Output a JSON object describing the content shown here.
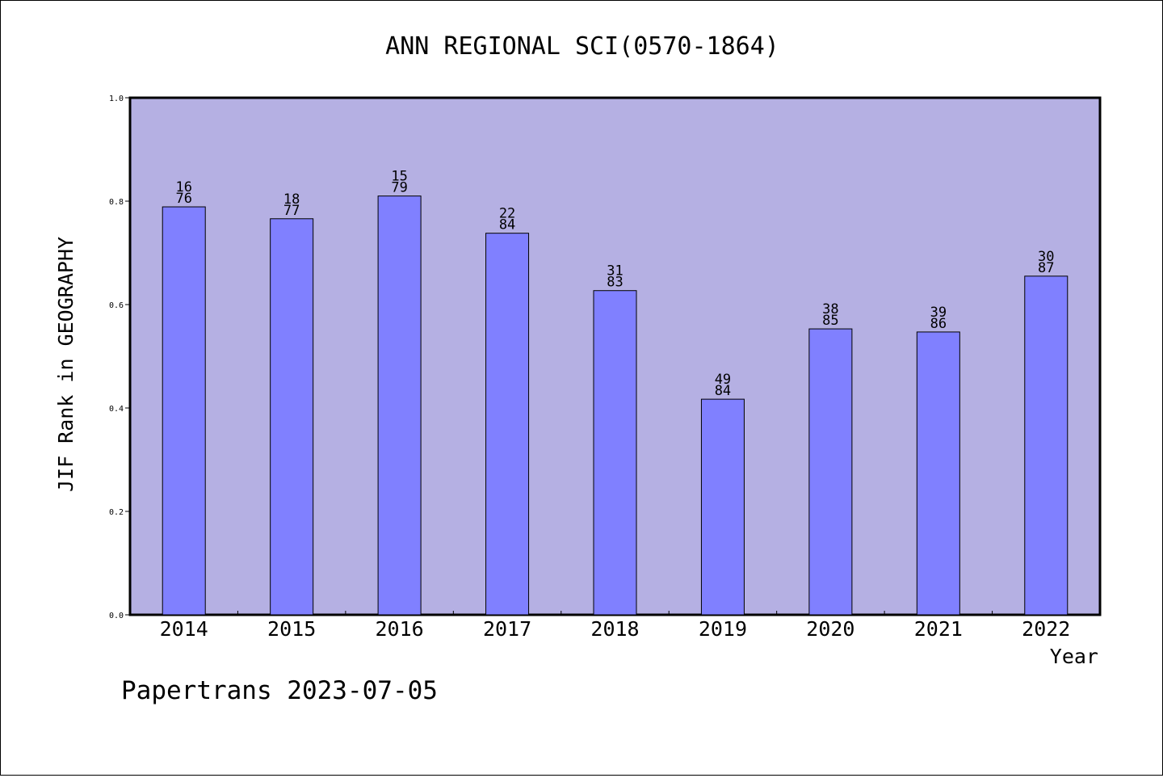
{
  "chart_data": {
    "type": "bar",
    "title": "ANN REGIONAL SCI(0570-1864)",
    "xlabel": "Year",
    "ylabel": "JIF Rank in GEOGRAPHY",
    "ylim": [
      0.0,
      1.0
    ],
    "yticks": [
      "0.0",
      "0.2",
      "0.4",
      "0.6",
      "0.8",
      "1.0"
    ],
    "categories": [
      "2014",
      "2015",
      "2016",
      "2017",
      "2018",
      "2019",
      "2020",
      "2021",
      "2022"
    ],
    "values": [
      0.789,
      0.766,
      0.81,
      0.738,
      0.627,
      0.417,
      0.553,
      0.547,
      0.655
    ],
    "bar_labels": [
      {
        "rank": "16",
        "total": "76"
      },
      {
        "rank": "18",
        "total": "77"
      },
      {
        "rank": "15",
        "total": "79"
      },
      {
        "rank": "22",
        "total": "84"
      },
      {
        "rank": "31",
        "total": "83"
      },
      {
        "rank": "49",
        "total": "84"
      },
      {
        "rank": "38",
        "total": "85"
      },
      {
        "rank": "39",
        "total": "86"
      },
      {
        "rank": "30",
        "total": "87"
      }
    ],
    "grid": false,
    "colors": {
      "plot_background": "#b5b0e3",
      "bar_fill": "#8080ff",
      "bar_stroke": "#000000"
    }
  },
  "footer": "Papertrans 2023-07-05"
}
